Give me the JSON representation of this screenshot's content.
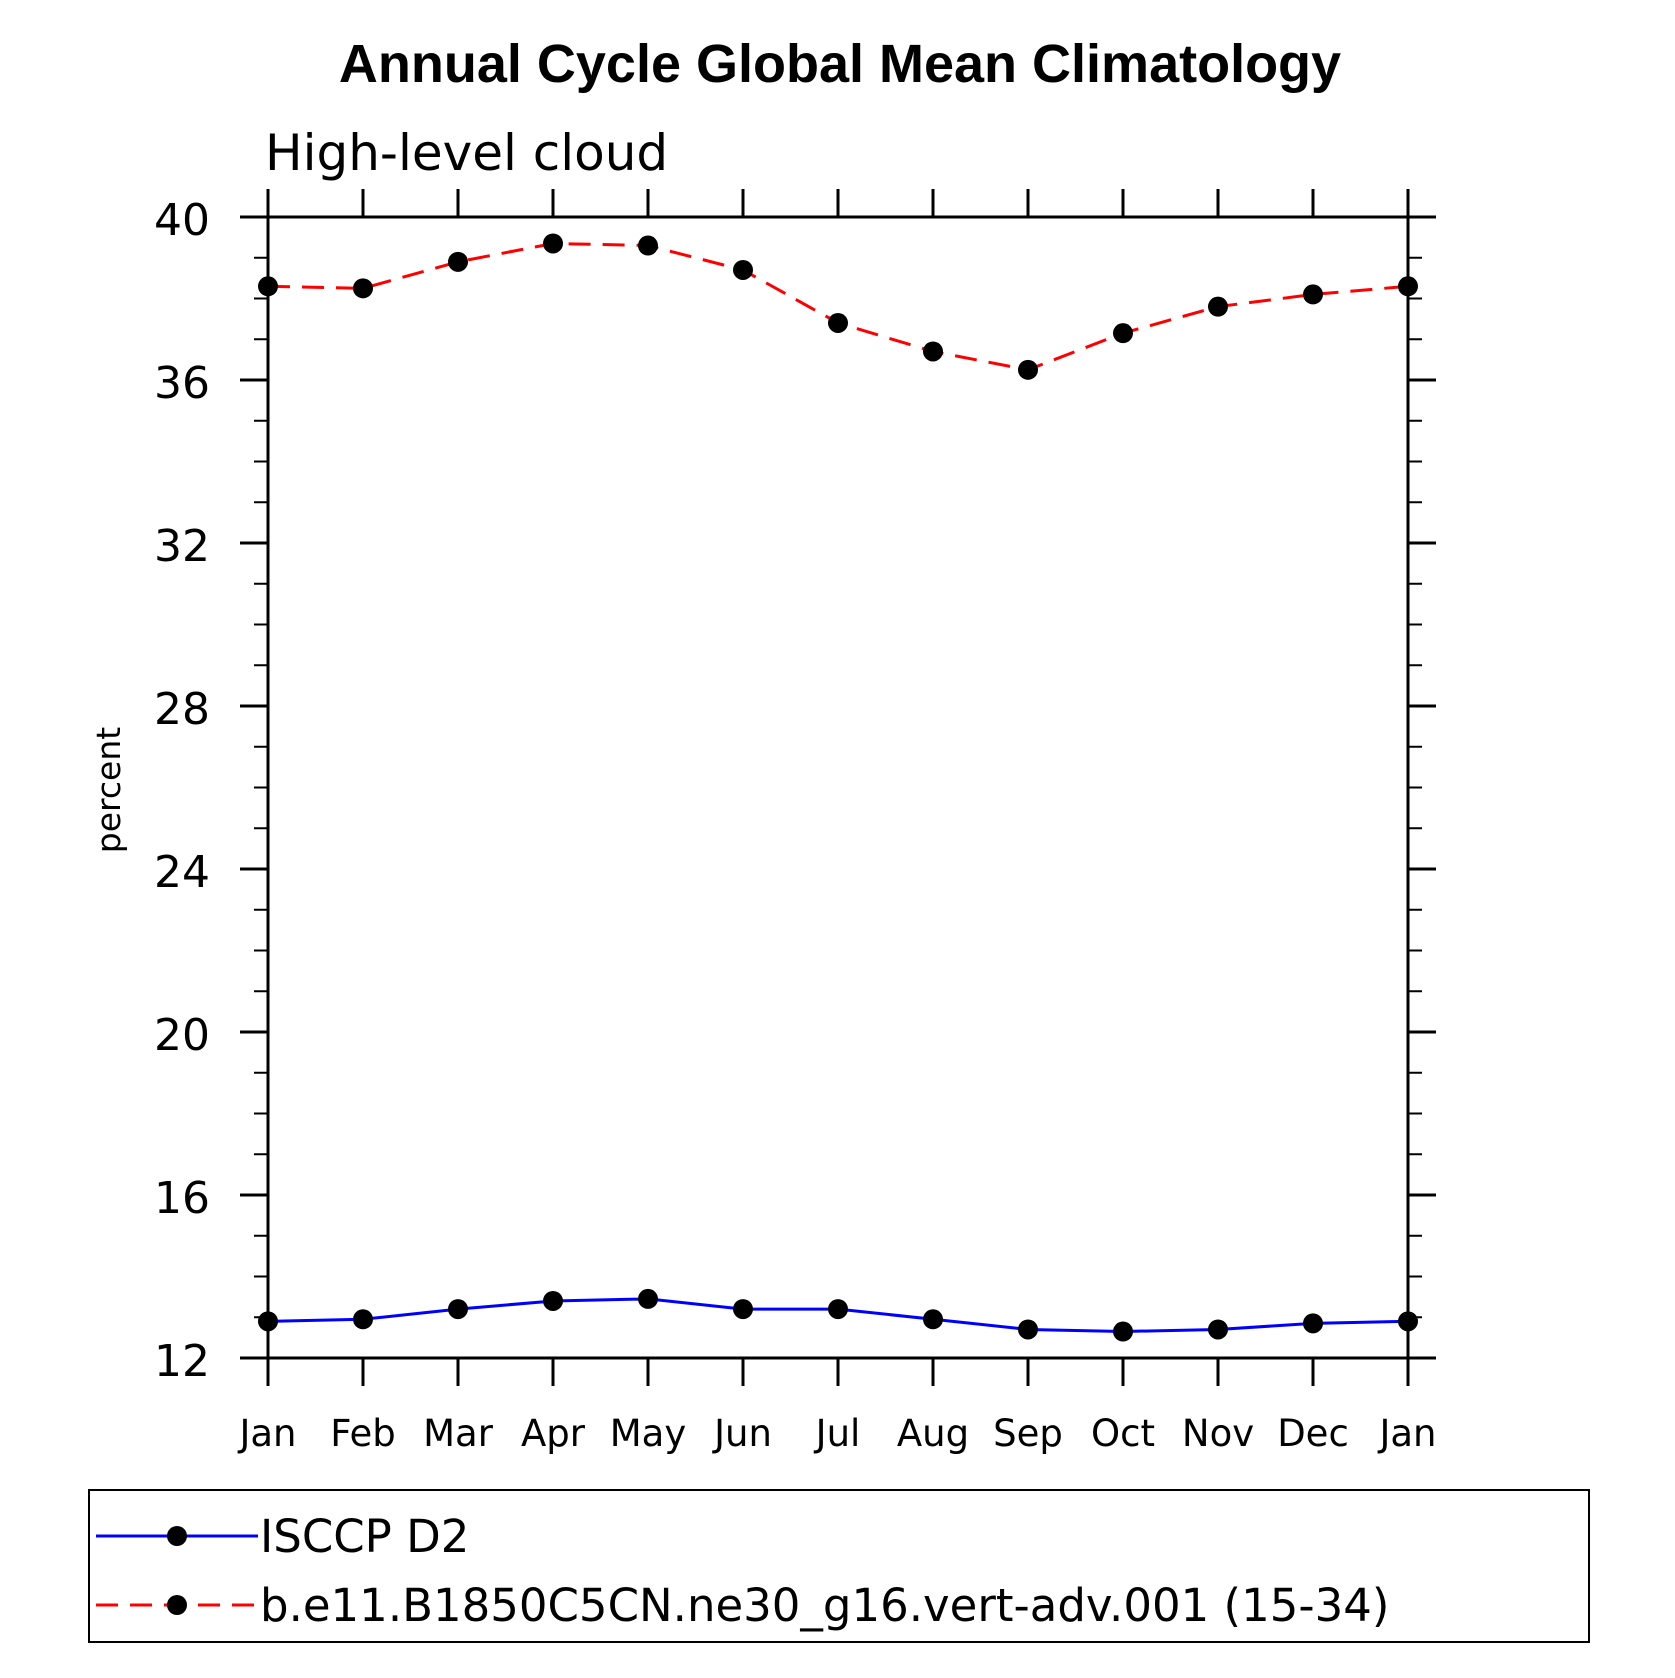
{
  "chart_data": {
    "type": "line",
    "title": "Annual Cycle Global Mean Climatology",
    "subtitle": "High-level cloud",
    "xlabel": "",
    "ylabel": "percent",
    "categories": [
      "Jan",
      "Feb",
      "Mar",
      "Apr",
      "May",
      "Jun",
      "Jul",
      "Aug",
      "Sep",
      "Oct",
      "Nov",
      "Dec",
      "Jan"
    ],
    "ylim": [
      12,
      40
    ],
    "yticks": [
      "12",
      "16",
      "20",
      "24",
      "28",
      "32",
      "36",
      "40"
    ],
    "ytick_values": [
      12,
      16,
      20,
      24,
      28,
      32,
      36,
      40
    ],
    "grid": false,
    "legend_position": "bottom",
    "series": [
      {
        "name": "ISCCP D2",
        "color": "#0000ff",
        "dash": "solid",
        "marker": "filled-circle",
        "values": [
          12.9,
          12.95,
          13.2,
          13.4,
          13.45,
          13.2,
          13.2,
          12.95,
          12.7,
          12.65,
          12.7,
          12.85,
          12.9
        ]
      },
      {
        "name": "b.e11.B1850C5CN.ne30_g16.vert-adv.001 (15-34)",
        "color": "#ff0000",
        "dash": "dashed",
        "marker": "filled-circle",
        "values": [
          38.3,
          38.25,
          38.9,
          39.35,
          39.3,
          38.7,
          37.4,
          36.7,
          36.25,
          37.15,
          37.8,
          38.1,
          38.3
        ]
      }
    ]
  }
}
